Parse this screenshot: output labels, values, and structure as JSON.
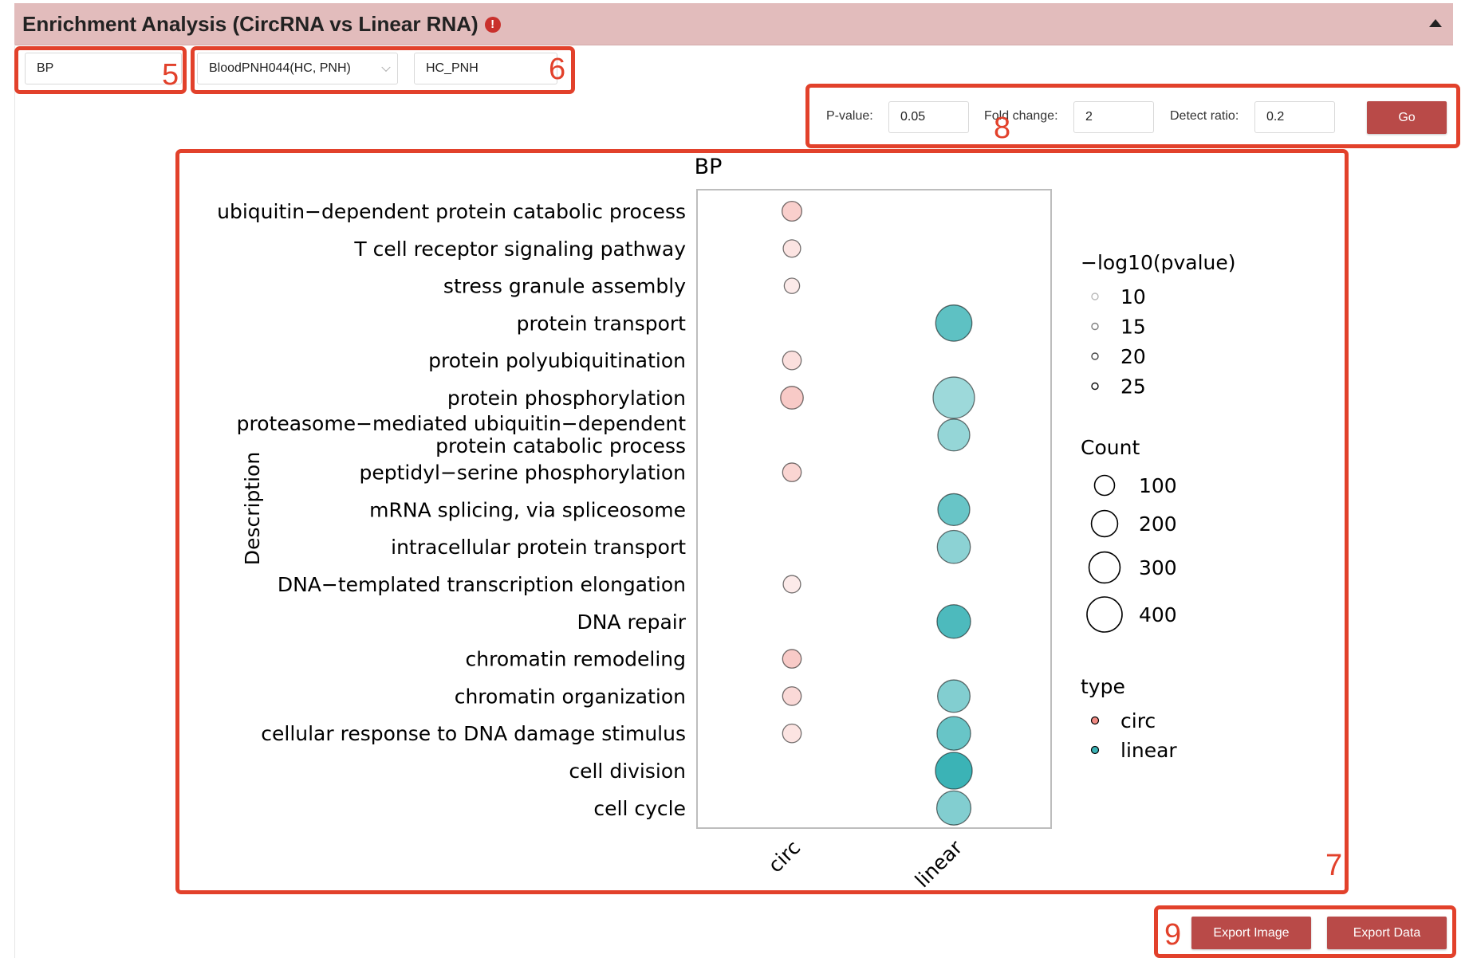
{
  "header": {
    "title": "Enrichment Analysis (CircRNA vs Linear RNA)",
    "alert_icon": "!"
  },
  "controls": {
    "ontology_value": "BP",
    "dataset_value": "BloodPNH044(HC, PNH)",
    "group_value": "HC_PNH",
    "pvalue_label": "P-value:",
    "pvalue_value": "0.05",
    "foldchange_label": "Fold change:",
    "foldchange_value": "2",
    "detect_label": "Detect ratio:",
    "detect_value": "0.2",
    "go_label": "Go"
  },
  "annotations": {
    "n5": "5",
    "n6": "6",
    "n7": "7",
    "n8": "8",
    "n9": "9"
  },
  "footer": {
    "export_image_label": "Export Image",
    "export_data_label": "Export Data"
  },
  "colors": {
    "accent": "#b94a48",
    "header_bg": "#e2bcbc",
    "annotation": "#e2412b",
    "circ": "#f08a83",
    "linear": "#3bb3b6"
  },
  "chart_data": {
    "type": "scatter",
    "title": "BP",
    "ylabel": "Description",
    "xlabel": "",
    "x_categories": [
      "circ",
      "linear"
    ],
    "y_categories": [
      "ubiquitin−dependent protein catabolic process",
      "T cell receptor signaling pathway",
      "stress granule assembly",
      "protein transport",
      "protein polyubiquitination",
      "protein phosphorylation",
      "proteasome−mediated ubiquitin−dependent\nprotein catabolic process",
      "peptidyl−serine phosphorylation",
      "mRNA splicing, via spliceosome",
      "intracellular protein transport",
      "DNA−templated transcription elongation",
      "DNA repair",
      "chromatin remodeling",
      "chromatin organization",
      "cellular response to DNA damage stimulus",
      "cell division",
      "cell cycle"
    ],
    "points": [
      {
        "term": "ubiquitin−dependent protein catabolic process",
        "type": "circ",
        "count": 70,
        "neglog10p": 13
      },
      {
        "term": "T cell receptor signaling pathway",
        "type": "circ",
        "count": 50,
        "neglog10p": 9
      },
      {
        "term": "stress granule assembly",
        "type": "circ",
        "count": 35,
        "neglog10p": 8
      },
      {
        "term": "protein transport",
        "type": "linear",
        "count": 310,
        "neglog10p": 22
      },
      {
        "term": "protein polyubiquitination",
        "type": "circ",
        "count": 60,
        "neglog10p": 10
      },
      {
        "term": "protein phosphorylation",
        "type": "circ",
        "count": 100,
        "neglog10p": 14
      },
      {
        "term": "protein phosphorylation",
        "type": "linear",
        "count": 420,
        "neglog10p": 15
      },
      {
        "term": "proteasome−mediated ubiquitin−dependent\nprotein catabolic process",
        "type": "linear",
        "count": 230,
        "neglog10p": 16
      },
      {
        "term": "peptidyl−serine phosphorylation",
        "type": "circ",
        "count": 60,
        "neglog10p": 12
      },
      {
        "term": "mRNA splicing, via spliceosome",
        "type": "linear",
        "count": 230,
        "neglog10p": 21
      },
      {
        "term": "intracellular protein transport",
        "type": "linear",
        "count": 250,
        "neglog10p": 17
      },
      {
        "term": "DNA−templated transcription elongation",
        "type": "circ",
        "count": 50,
        "neglog10p": 8
      },
      {
        "term": "DNA repair",
        "type": "linear",
        "count": 260,
        "neglog10p": 24
      },
      {
        "term": "chromatin remodeling",
        "type": "circ",
        "count": 60,
        "neglog10p": 14
      },
      {
        "term": "chromatin organization",
        "type": "circ",
        "count": 60,
        "neglog10p": 11
      },
      {
        "term": "chromatin organization",
        "type": "linear",
        "count": 240,
        "neglog10p": 18
      },
      {
        "term": "cellular response to DNA damage stimulus",
        "type": "circ",
        "count": 60,
        "neglog10p": 9
      },
      {
        "term": "cellular response to DNA damage stimulus",
        "type": "linear",
        "count": 260,
        "neglog10p": 21
      },
      {
        "term": "cell division",
        "type": "linear",
        "count": 320,
        "neglog10p": 26
      },
      {
        "term": "cell cycle",
        "type": "linear",
        "count": 270,
        "neglog10p": 18
      }
    ],
    "legend_alpha": {
      "title": "−log10(pvalue)",
      "values": [
        10,
        15,
        20,
        25
      ]
    },
    "legend_size": {
      "title": "Count",
      "values": [
        100,
        200,
        300,
        400
      ]
    },
    "legend_type": {
      "title": "type",
      "values": [
        "circ",
        "linear"
      ]
    },
    "alpha_range": [
      8,
      26
    ],
    "count_range": [
      30,
      420
    ],
    "legend_position": "right",
    "grid": false
  }
}
